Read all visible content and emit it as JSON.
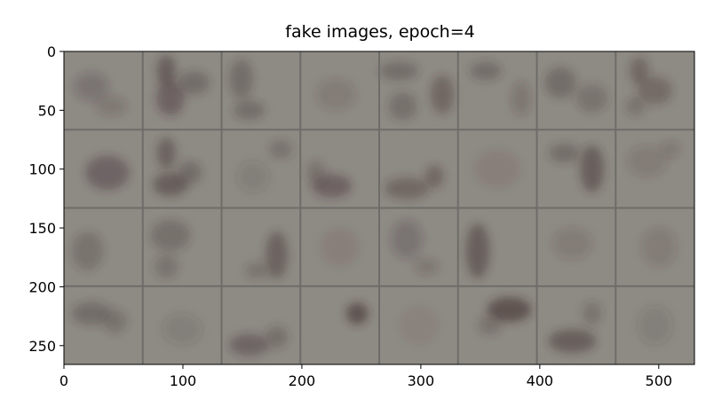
{
  "chart_data": {
    "type": "image-grid",
    "title": "fake images,  epoch=4",
    "xlabel": "",
    "ylabel": "",
    "image_width": 530,
    "image_height": 266,
    "grid_rows": 4,
    "grid_cols": 8,
    "xlim": [
      0,
      530
    ],
    "ylim": [
      266,
      0
    ],
    "xticks": [
      0,
      100,
      200,
      300,
      400,
      500
    ],
    "xtick_labels": [
      "0",
      "100",
      "200",
      "300",
      "400",
      "500"
    ],
    "yticks": [
      0,
      50,
      100,
      150,
      200,
      250
    ],
    "ytick_labels": [
      "0",
      "50",
      "100",
      "150",
      "200",
      "250"
    ],
    "grid": false,
    "colors": {
      "background": "#8e8a84",
      "separator": "#6e6c69",
      "blob": "#3c2a2c"
    },
    "tiles": [
      [
        {
          "blobs": [
            [
              0.35,
              0.45,
              0.22,
              0.18,
              0.22
            ],
            [
              0.6,
              0.7,
              0.2,
              0.12,
              0.18
            ]
          ]
        },
        {
          "blobs": [
            [
              0.3,
              0.25,
              0.12,
              0.2,
              0.45
            ],
            [
              0.35,
              0.6,
              0.18,
              0.22,
              0.4
            ],
            [
              0.65,
              0.4,
              0.2,
              0.15,
              0.3
            ]
          ]
        },
        {
          "blobs": [
            [
              0.25,
              0.35,
              0.15,
              0.25,
              0.3
            ],
            [
              0.35,
              0.75,
              0.2,
              0.12,
              0.3
            ]
          ]
        },
        {
          "blobs": [
            [
              0.45,
              0.55,
              0.25,
              0.2,
              0.15
            ]
          ]
        },
        {
          "blobs": [
            [
              0.25,
              0.25,
              0.25,
              0.12,
              0.3
            ],
            [
              0.8,
              0.55,
              0.15,
              0.25,
              0.35
            ],
            [
              0.3,
              0.7,
              0.18,
              0.18,
              0.28
            ]
          ]
        },
        {
          "blobs": [
            [
              0.35,
              0.25,
              0.2,
              0.12,
              0.3
            ],
            [
              0.8,
              0.6,
              0.12,
              0.22,
              0.2
            ]
          ]
        },
        {
          "blobs": [
            [
              0.3,
              0.4,
              0.2,
              0.2,
              0.3
            ],
            [
              0.7,
              0.6,
              0.2,
              0.18,
              0.25
            ]
          ]
        },
        {
          "blobs": [
            [
              0.3,
              0.25,
              0.12,
              0.18,
              0.35
            ],
            [
              0.5,
              0.5,
              0.22,
              0.18,
              0.32
            ],
            [
              0.25,
              0.7,
              0.12,
              0.12,
              0.25
            ]
          ]
        }
      ],
      [
        {
          "blobs": [
            [
              0.55,
              0.55,
              0.28,
              0.22,
              0.38
            ]
          ]
        },
        {
          "blobs": [
            [
              0.3,
              0.3,
              0.12,
              0.2,
              0.42
            ],
            [
              0.35,
              0.7,
              0.22,
              0.15,
              0.45
            ],
            [
              0.6,
              0.55,
              0.15,
              0.15,
              0.3
            ]
          ]
        },
        {
          "blobs": [
            [
              0.75,
              0.25,
              0.15,
              0.12,
              0.25
            ],
            [
              0.4,
              0.6,
              0.2,
              0.2,
              0.12
            ]
          ]
        },
        {
          "blobs": [
            [
              0.4,
              0.72,
              0.25,
              0.15,
              0.4
            ],
            [
              0.2,
              0.55,
              0.12,
              0.15,
              0.25
            ]
          ]
        },
        {
          "blobs": [
            [
              0.35,
              0.75,
              0.28,
              0.14,
              0.35
            ],
            [
              0.7,
              0.6,
              0.12,
              0.15,
              0.35
            ]
          ]
        },
        {
          "blobs": [
            [
              0.5,
              0.5,
              0.3,
              0.25,
              0.08
            ]
          ]
        },
        {
          "blobs": [
            [
              0.35,
              0.3,
              0.2,
              0.12,
              0.3
            ],
            [
              0.7,
              0.5,
              0.15,
              0.3,
              0.45
            ]
          ]
        },
        {
          "blobs": [
            [
              0.4,
              0.4,
              0.25,
              0.2,
              0.15
            ],
            [
              0.7,
              0.25,
              0.12,
              0.1,
              0.18
            ]
          ]
        }
      ],
      [
        {
          "blobs": [
            [
              0.3,
              0.55,
              0.2,
              0.25,
              0.25
            ]
          ]
        },
        {
          "blobs": [
            [
              0.35,
              0.35,
              0.25,
              0.2,
              0.28
            ],
            [
              0.3,
              0.75,
              0.15,
              0.15,
              0.25
            ]
          ]
        },
        {
          "blobs": [
            [
              0.7,
              0.6,
              0.14,
              0.3,
              0.42
            ],
            [
              0.45,
              0.8,
              0.15,
              0.1,
              0.25
            ]
          ]
        },
        {
          "blobs": [
            [
              0.5,
              0.5,
              0.25,
              0.25,
              0.08
            ]
          ]
        },
        {
          "blobs": [
            [
              0.35,
              0.4,
              0.2,
              0.25,
              0.22
            ],
            [
              0.6,
              0.75,
              0.15,
              0.1,
              0.2
            ]
          ]
        },
        {
          "blobs": [
            [
              0.25,
              0.55,
              0.15,
              0.35,
              0.45
            ]
          ]
        },
        {
          "blobs": [
            [
              0.45,
              0.45,
              0.25,
              0.2,
              0.15
            ]
          ]
        },
        {
          "blobs": [
            [
              0.55,
              0.5,
              0.22,
              0.25,
              0.15
            ]
          ]
        }
      ],
      [
        {
          "blobs": [
            [
              0.35,
              0.35,
              0.25,
              0.15,
              0.3
            ],
            [
              0.65,
              0.45,
              0.15,
              0.15,
              0.25
            ]
          ]
        },
        {
          "blobs": [
            [
              0.5,
              0.55,
              0.25,
              0.2,
              0.12
            ]
          ]
        },
        {
          "blobs": [
            [
              0.35,
              0.75,
              0.25,
              0.14,
              0.38
            ],
            [
              0.7,
              0.65,
              0.14,
              0.14,
              0.28
            ]
          ]
        },
        {
          "blobs": [
            [
              0.72,
              0.35,
              0.14,
              0.14,
              0.55
            ]
          ]
        },
        {
          "blobs": [
            [
              0.5,
              0.5,
              0.25,
              0.25,
              0.06
            ]
          ]
        },
        {
          "blobs": [
            [
              0.65,
              0.3,
              0.28,
              0.16,
              0.55
            ],
            [
              0.4,
              0.5,
              0.15,
              0.12,
              0.25
            ]
          ]
        },
        {
          "blobs": [
            [
              0.45,
              0.7,
              0.3,
              0.15,
              0.45
            ],
            [
              0.7,
              0.35,
              0.12,
              0.15,
              0.25
            ]
          ]
        },
        {
          "blobs": [
            [
              0.5,
              0.5,
              0.22,
              0.25,
              0.12
            ]
          ]
        }
      ]
    ]
  }
}
